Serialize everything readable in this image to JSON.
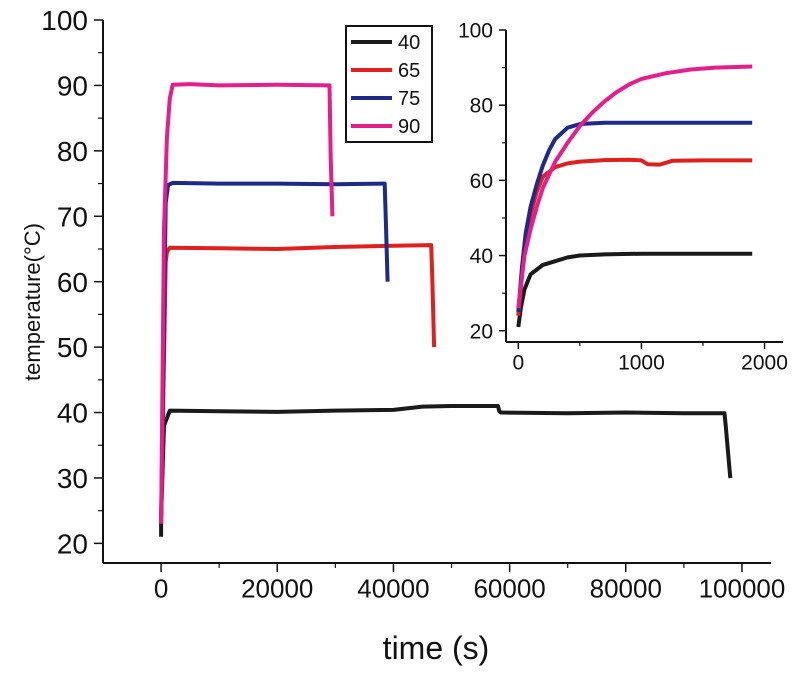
{
  "chart_data": [
    {
      "type": "line",
      "title": "",
      "xlabel": "time (s)",
      "ylabel": "temperature(°C)",
      "xlim": [
        -10000,
        105000
      ],
      "ylim": [
        17,
        100
      ],
      "xticks": [
        0,
        20000,
        40000,
        60000,
        80000,
        100000
      ],
      "yticks": [
        20,
        30,
        40,
        50,
        60,
        70,
        80,
        90,
        100
      ],
      "legend_position": "top-right",
      "series": [
        {
          "name": "40",
          "color": "#1a1a1a",
          "x": [
            0,
            0,
            500,
            1500,
            10000,
            20000,
            30000,
            40000,
            45000,
            50000,
            58000,
            58200,
            58500,
            70000,
            80000,
            90000,
            97000,
            97200,
            98000
          ],
          "y": [
            21,
            24,
            38,
            40.3,
            40.2,
            40.1,
            40.3,
            40.4,
            40.9,
            41,
            41,
            40.2,
            40,
            39.9,
            40,
            39.9,
            39.9,
            38,
            30
          ]
        },
        {
          "name": "65",
          "color": "#e0201f",
          "x": [
            0,
            800,
            1000,
            1500,
            10000,
            20000,
            30000,
            40000,
            46500,
            46700,
            47000
          ],
          "y": [
            23,
            63,
            64.5,
            65.2,
            65.1,
            65,
            65.3,
            65.5,
            65.6,
            60,
            50
          ]
        },
        {
          "name": "75",
          "color": "#1d2a8a",
          "x": [
            0,
            800,
            1200,
            2000,
            10000,
            20000,
            30000,
            38500,
            38700,
            39000
          ],
          "y": [
            23,
            72,
            74.8,
            75.1,
            75,
            75,
            74.9,
            75,
            69,
            60
          ]
        },
        {
          "name": "90",
          "color": "#e61e8c",
          "x": [
            0,
            500,
            1000,
            1500,
            2000,
            5000,
            10000,
            20000,
            29000,
            29200,
            29500
          ],
          "y": [
            23,
            68,
            82,
            88,
            90.1,
            90.2,
            90,
            90.1,
            90,
            79,
            70
          ]
        }
      ]
    },
    {
      "type": "line",
      "title": "",
      "xlabel": "",
      "ylabel": "",
      "xlim": [
        -100,
        2150
      ],
      "ylim": [
        17,
        100
      ],
      "xticks": [
        0,
        1000,
        2000
      ],
      "yticks": [
        20,
        40,
        60,
        80,
        100
      ],
      "series": [
        {
          "name": "40",
          "color": "#1a1a1a",
          "x": [
            0,
            20,
            50,
            100,
            200,
            300,
            400,
            500,
            700,
            1000,
            1500,
            1900
          ],
          "y": [
            21,
            26,
            31,
            35,
            37.5,
            38.5,
            39.5,
            40,
            40.3,
            40.5,
            40.5,
            40.5
          ]
        },
        {
          "name": "65",
          "color": "#e0201f",
          "x": [
            0,
            30,
            60,
            100,
            150,
            200,
            300,
            400,
            500,
            700,
            900,
            1000,
            1050,
            1150,
            1250,
            1500,
            1900
          ],
          "y": [
            24,
            35,
            44,
            51,
            57,
            61,
            63.5,
            64.5,
            65,
            65.4,
            65.5,
            65.3,
            64.3,
            64.2,
            65.2,
            65.3,
            65.3
          ]
        },
        {
          "name": "75",
          "color": "#1d2a8a",
          "x": [
            0,
            30,
            60,
            100,
            150,
            200,
            250,
            300,
            400,
            500,
            700,
            1000,
            1500,
            1900
          ],
          "y": [
            25,
            37,
            46,
            53,
            59,
            64,
            68,
            71,
            74,
            75,
            75.3,
            75.3,
            75.3,
            75.3
          ]
        },
        {
          "name": "90",
          "color": "#e61e8c",
          "x": [
            0,
            50,
            100,
            150,
            200,
            300,
            400,
            500,
            600,
            700,
            800,
            900,
            1000,
            1200,
            1400,
            1600,
            1900
          ],
          "y": [
            26,
            40,
            47,
            53,
            58,
            65,
            70,
            74.5,
            78,
            81,
            83.5,
            85.5,
            87,
            88.5,
            89.5,
            90,
            90.3
          ]
        }
      ]
    }
  ]
}
